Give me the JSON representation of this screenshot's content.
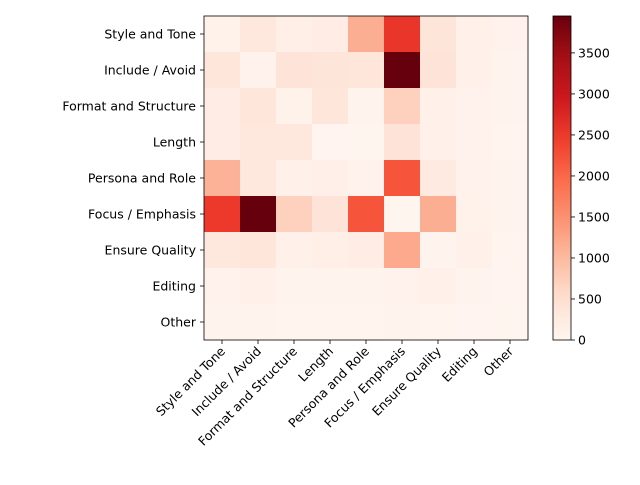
{
  "chart_data": {
    "type": "heatmap",
    "title": "",
    "xlabel": "",
    "ylabel": "",
    "row_labels": [
      "Style and Tone",
      "Include / Avoid",
      "Format and Structure",
      "Length",
      "Persona and Role",
      "Focus / Emphasis",
      "Ensure Quality",
      "Editing",
      "Other"
    ],
    "col_labels": [
      "Style and Tone",
      "Include / Avoid",
      "Format and Structure",
      "Length",
      "Persona and Role",
      "Focus / Emphasis",
      "Ensure Quality",
      "Editing",
      "Other"
    ],
    "values": [
      [
        80,
        300,
        150,
        180,
        1150,
        2550,
        380,
        100,
        60
      ],
      [
        350,
        60,
        400,
        380,
        350,
        3950,
        400,
        110,
        50
      ],
      [
        180,
        350,
        80,
        350,
        50,
        700,
        110,
        60,
        40
      ],
      [
        200,
        300,
        320,
        20,
        10,
        400,
        110,
        60,
        30
      ],
      [
        1100,
        300,
        110,
        130,
        70,
        2200,
        250,
        60,
        40
      ],
      [
        2500,
        3950,
        700,
        400,
        2200,
        10,
        1150,
        80,
        50
      ],
      [
        300,
        350,
        120,
        150,
        200,
        1200,
        50,
        100,
        30
      ],
      [
        60,
        100,
        50,
        50,
        40,
        70,
        100,
        50,
        20
      ],
      [
        40,
        50,
        30,
        30,
        30,
        40,
        30,
        20,
        10
      ]
    ],
    "colormap": "Reds",
    "colorbar": {
      "vmin": 0,
      "vmax": 3950,
      "ticks": [
        0,
        500,
        1000,
        1500,
        2000,
        2500,
        3000,
        3500
      ],
      "tick_labels": [
        "0",
        "500",
        "1000",
        "1500",
        "2000",
        "2500",
        "3000",
        "3500"
      ]
    }
  }
}
